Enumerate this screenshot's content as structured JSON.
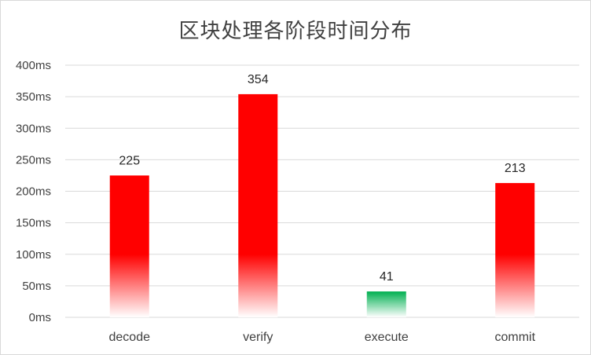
{
  "chart_data": {
    "type": "bar",
    "title": "区块处理各阶段时间分布",
    "categories": [
      "decode",
      "verify",
      "execute",
      "commit"
    ],
    "values": [
      225,
      354,
      41,
      213
    ],
    "bar_colors": [
      "#ff0000",
      "#ff0000",
      "#00b050",
      "#ff0000"
    ],
    "data_labels": [
      "225",
      "354",
      "41",
      "213"
    ],
    "ylim": [
      0,
      400
    ],
    "y_ticks": [
      0,
      50,
      100,
      150,
      200,
      250,
      300,
      350,
      400
    ],
    "y_tick_labels": [
      "0ms",
      "50ms",
      "100ms",
      "150ms",
      "200ms",
      "250ms",
      "300ms",
      "350ms",
      "400ms"
    ],
    "grid": true,
    "legend": "none",
    "bar_fill": "vertical gradient fading to white at baseline"
  }
}
